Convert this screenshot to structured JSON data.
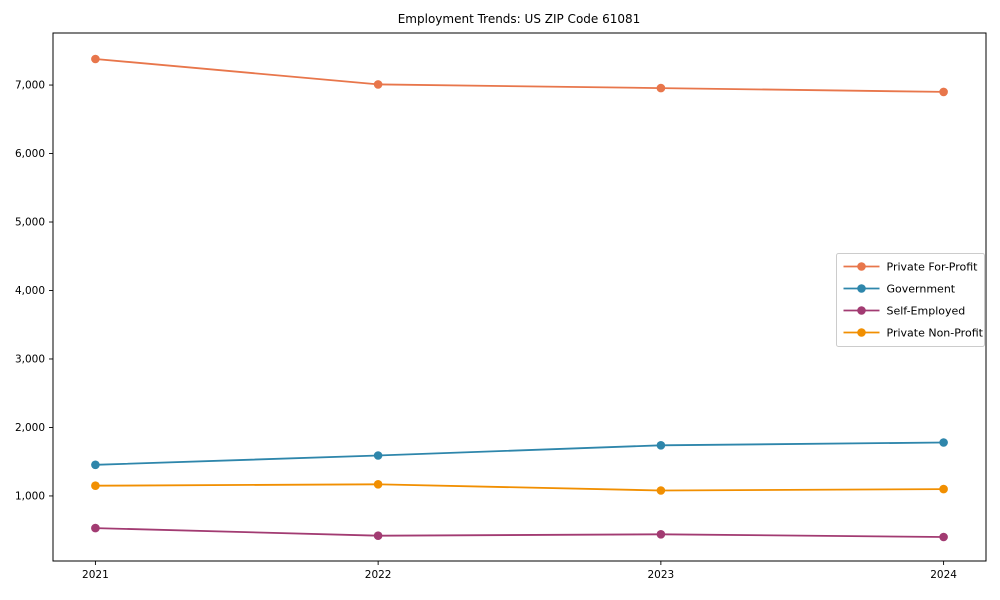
{
  "title": "Employment Trends: US ZIP Code 61081",
  "chart_data": {
    "type": "line",
    "title": "Employment Trends: US ZIP Code 61081",
    "xlabel": "",
    "ylabel": "",
    "x": [
      2021,
      2022,
      2023,
      2024
    ],
    "x_tick_labels": [
      "2021",
      "2022",
      "2023",
      "2024"
    ],
    "series": [
      {
        "name": "Private For-Profit",
        "color": "#E8764B",
        "values": [
          7380,
          7010,
          6955,
          6900
        ]
      },
      {
        "name": "Government",
        "color": "#2E86AB",
        "values": [
          1455,
          1590,
          1740,
          1780
        ]
      },
      {
        "name": "Self-Employed",
        "color": "#A23B72",
        "values": [
          530,
          420,
          440,
          400
        ]
      },
      {
        "name": "Private Non-Profit",
        "color": "#F18F01",
        "values": [
          1150,
          1170,
          1080,
          1100
        ]
      }
    ],
    "xlim": [
      2020.85,
      2024.15
    ],
    "ylim": [
      50,
      7760
    ],
    "yticks": [
      {
        "value": 1000,
        "label": "1,000"
      },
      {
        "value": 2000,
        "label": "2,000"
      },
      {
        "value": 3000,
        "label": "3,000"
      },
      {
        "value": 4000,
        "label": "4,000"
      },
      {
        "value": 5000,
        "label": "5,000"
      },
      {
        "value": 6000,
        "label": "6,000"
      },
      {
        "value": 7000,
        "label": "7,000"
      }
    ],
    "grid": false,
    "marker": "circle",
    "legend": {
      "position": "center-right",
      "entries": [
        "Private For-Profit",
        "Government",
        "Self-Employed",
        "Private Non-Profit"
      ]
    },
    "colors": {
      "spine": "#000000",
      "tick": "#000000",
      "legend_border": "#cccccc",
      "legend_bg": "#ffffff"
    }
  }
}
